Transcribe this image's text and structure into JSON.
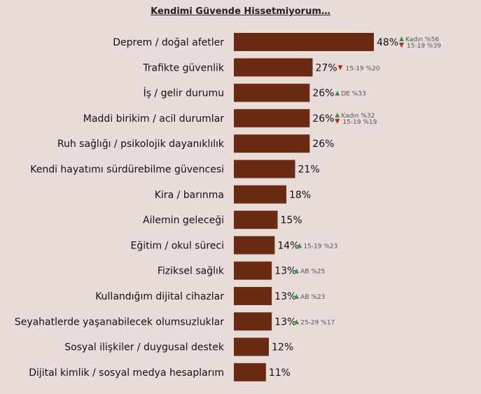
{
  "colors": {
    "bar": "#6b2a12",
    "up": "#2e9a46",
    "down": "#d11a1a",
    "background": "#e8dcd9"
  },
  "chart_data": {
    "type": "bar",
    "orientation": "horizontal",
    "title": "Kendimi Güvende Hissetmiyorum…",
    "unit": "%",
    "categories": [
      "Deprem / doğal afetler",
      "Trafikte güvenlik",
      "İş / gelir durumu",
      "Maddi birikim / acil durumlar",
      "Ruh sağlığı / psikolojik dayanıklılık",
      "Kendi hayatımı sürdürebilme güvencesi",
      "Kira / barınma",
      "Ailemin geleceği",
      "Eğitim / okul süreci",
      "Fiziksel sağlık",
      "Kullandığım dijital cihazlar",
      "Seyahatlerde yaşanabilecek olumsuzluklar",
      "Sosyal ilişkiler / duygusal destek",
      "Dijital kimlik / sosyal medya hesaplarım"
    ],
    "values": [
      48,
      27,
      26,
      26,
      26,
      21,
      18,
      15,
      14,
      13,
      13,
      13,
      12,
      11
    ],
    "value_labels": [
      "48%",
      "27%",
      "26%",
      "26%",
      "26%",
      "21%",
      "18%",
      "15%",
      "14%",
      "13%",
      "13%",
      "13%",
      "12%",
      "11%"
    ],
    "annotations": [
      [
        {
          "dir": "up",
          "text": "Kadın %56"
        },
        {
          "dir": "down",
          "text": "15-19 %39"
        }
      ],
      [
        {
          "dir": "down",
          "text": "15-19 %20"
        }
      ],
      [
        {
          "dir": "up",
          "text": "DE %33"
        }
      ],
      [
        {
          "dir": "up",
          "text": "Kadın %32"
        },
        {
          "dir": "down",
          "text": "15-19 %19"
        }
      ],
      [],
      [],
      [],
      [],
      [
        {
          "dir": "up",
          "text": "15-19 %23"
        }
      ],
      [
        {
          "dir": "up",
          "text": "AB %25"
        }
      ],
      [
        {
          "dir": "up",
          "text": "AB %23"
        }
      ],
      [
        {
          "dir": "up",
          "text": "25-29 %17"
        }
      ],
      [],
      []
    ]
  }
}
